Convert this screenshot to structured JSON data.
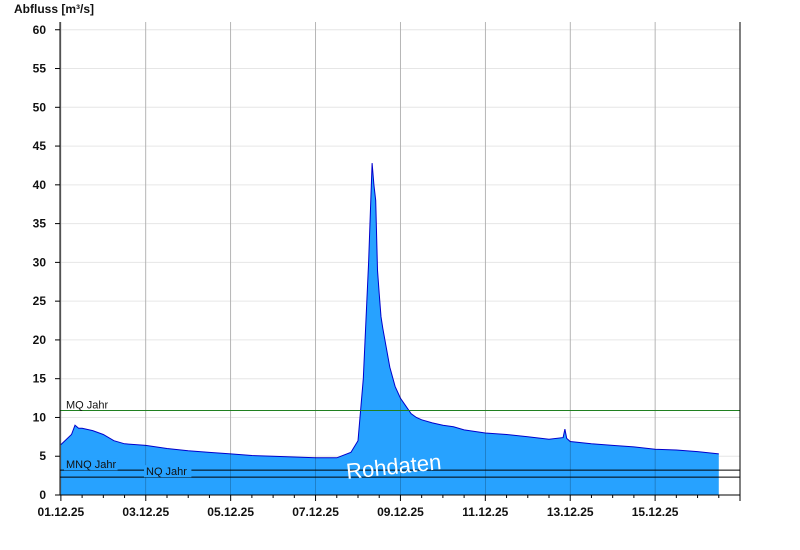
{
  "chart_data": {
    "type": "area",
    "ylabel": "Abfluss [m³/s]",
    "ylim": [
      0,
      61
    ],
    "yticks": [
      "0",
      "5",
      "10",
      "15",
      "20",
      "25",
      "30",
      "35",
      "40",
      "45",
      "50",
      "55",
      "60"
    ],
    "xlim": [
      "2025-11-30T23:30",
      "2025-12-17T00:00"
    ],
    "xticks": [
      {
        "date": "2025-12-01",
        "label": "01.12.25"
      },
      {
        "date": "2025-12-03",
        "label": "03.12.25"
      },
      {
        "date": "2025-12-05",
        "label": "05.12.25"
      },
      {
        "date": "2025-12-07",
        "label": "07.12.25"
      },
      {
        "date": "2025-12-09",
        "label": "09.12.25"
      },
      {
        "date": "2025-12-11",
        "label": "11.12.25"
      },
      {
        "date": "2025-12-13",
        "label": "13.12.25"
      },
      {
        "date": "2025-12-15",
        "label": "15.12.25"
      }
    ],
    "grid": true,
    "watermark": "Rohdaten",
    "fill_color": "#27a2ff",
    "line_color": "#0000cc",
    "reference_lines": [
      {
        "label": "MQ Jahr",
        "value": 10.9,
        "color": "#208020"
      },
      {
        "label": "MNQ Jahr",
        "value": 3.2,
        "color": "#000000"
      },
      {
        "label": "NQ Jahr",
        "value": 2.3,
        "color": "#000000"
      }
    ],
    "series": [
      {
        "x": [
          "2025-12-01T00:00",
          "2025-12-01T06:00",
          "2025-12-01T08:00",
          "2025-12-01T10:00",
          "2025-12-01T12:00",
          "2025-12-01T18:00",
          "2025-12-02T00:00",
          "2025-12-02T06:00",
          "2025-12-02T12:00",
          "2025-12-03T00:00",
          "2025-12-03T12:00",
          "2025-12-04T00:00",
          "2025-12-04T12:00",
          "2025-12-05T00:00",
          "2025-12-05T12:00",
          "2025-12-06T00:00",
          "2025-12-06T12:00",
          "2025-12-07T00:00",
          "2025-12-07T12:00",
          "2025-12-07T20:00",
          "2025-12-08T00:00",
          "2025-12-08T03:00",
          "2025-12-08T06:00",
          "2025-12-08T08:00",
          "2025-12-08T09:00",
          "2025-12-08T10:00",
          "2025-12-08T11:00",
          "2025-12-08T12:00",
          "2025-12-08T13:00",
          "2025-12-08T14:00",
          "2025-12-08T16:00",
          "2025-12-08T18:00",
          "2025-12-08T21:00",
          "2025-12-09T00:00",
          "2025-12-09T03:00",
          "2025-12-09T06:00",
          "2025-12-09T09:00",
          "2025-12-09T12:00",
          "2025-12-09T18:00",
          "2025-12-10T00:00",
          "2025-12-10T06:00",
          "2025-12-10T12:00",
          "2025-12-11T00:00",
          "2025-12-11T12:00",
          "2025-12-12T00:00",
          "2025-12-12T12:00",
          "2025-12-12T20:00",
          "2025-12-12T21:00",
          "2025-12-12T22:00",
          "2025-12-13T00:00",
          "2025-12-13T12:00",
          "2025-12-14T00:00",
          "2025-12-14T12:00",
          "2025-12-15T00:00",
          "2025-12-15T12:00",
          "2025-12-16T00:00",
          "2025-12-16T12:00"
        ],
        "y": [
          6.5,
          7.8,
          9.0,
          8.6,
          8.6,
          8.3,
          7.8,
          7.0,
          6.6,
          6.4,
          6.0,
          5.7,
          5.5,
          5.3,
          5.1,
          5.0,
          4.9,
          4.8,
          4.8,
          5.5,
          7.0,
          15.0,
          30.0,
          42.8,
          40.0,
          38.0,
          29.0,
          26.0,
          23.0,
          21.5,
          19.0,
          16.5,
          14.0,
          12.5,
          11.5,
          10.5,
          10.0,
          9.7,
          9.3,
          9.0,
          8.8,
          8.4,
          8.0,
          7.8,
          7.5,
          7.2,
          7.4,
          8.5,
          7.3,
          6.9,
          6.6,
          6.4,
          6.2,
          5.9,
          5.8,
          5.6,
          5.3
        ]
      }
    ]
  }
}
